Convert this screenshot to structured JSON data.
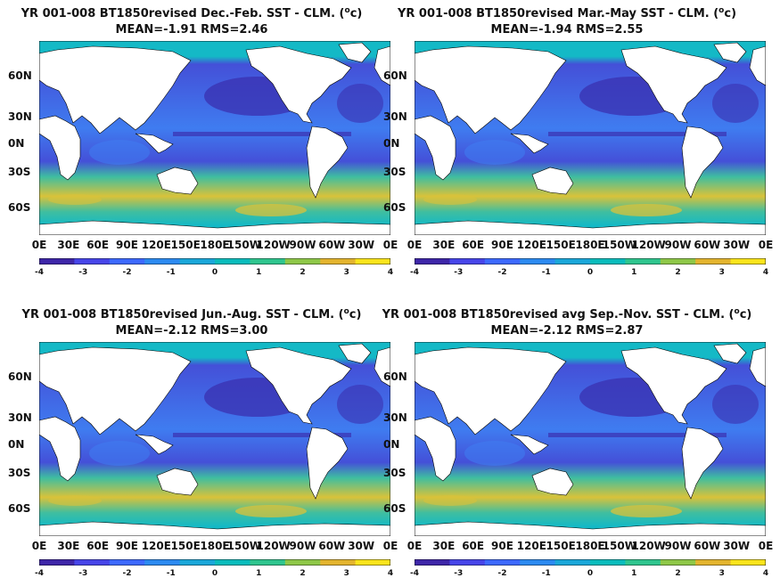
{
  "panels": [
    {
      "title_line1_pre": "YR 001-008 BT1850revised  Dec.-Feb. SST - CLM. (",
      "title_sup": "o",
      "title_line1_post": "c)",
      "title_line2": "MEAN=-1.91   RMS=2.46"
    },
    {
      "title_line1_pre": "YR 001-008 BT1850revised Mar.-May SST - CLM. (",
      "title_sup": "o",
      "title_line1_post": "c)",
      "title_line2": "MEAN=-1.94   RMS=2.55"
    },
    {
      "title_line1_pre": "YR 001-008 BT1850revised Jun.-Aug. SST - CLM. (",
      "title_sup": "o",
      "title_line1_post": "c)",
      "title_line2": "MEAN=-2.12   RMS=3.00"
    },
    {
      "title_line1_pre": "YR 001-008 BT1850revised avg Sep.-Nov. SST - CLM. (",
      "title_sup": "o",
      "title_line1_post": "c)",
      "title_line2": "MEAN=-2.12   RMS=2.87"
    }
  ],
  "lat_labels": [
    "60N",
    "30N",
    "0N",
    "30S",
    "60S"
  ],
  "lon_labels": [
    "0E",
    "30E",
    "60E",
    "90E",
    "120E",
    "150E",
    "180E",
    "150W",
    "120W",
    "90W",
    "60W",
    "30W",
    "0E"
  ],
  "colorbar": {
    "ticks": [
      "-4",
      "-3",
      "-2",
      "-1",
      "0",
      "1",
      "2",
      "3",
      "4"
    ],
    "range": [
      -4,
      4
    ],
    "colors": [
      "#3e26a8",
      "#4745e8",
      "#3d69fe",
      "#2c8af0",
      "#1aa7d9",
      "#09bcbc",
      "#2fc58e",
      "#8ec748",
      "#e3b42e",
      "#f9e41c"
    ]
  },
  "colors": {
    "ocean_base": "#4450d8",
    "ocean_deep": "#3a30b0",
    "ocean_mid": "#3f7cf0",
    "warm_band": "#3fbea0",
    "hot_band": "#d9c23a",
    "arctic": "#14b9c6",
    "land": "#ffffff"
  }
}
